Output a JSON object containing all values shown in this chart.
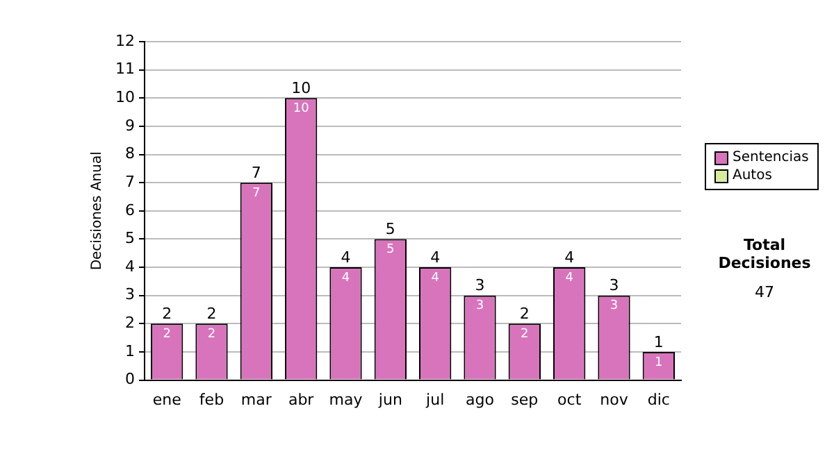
{
  "chart_data": {
    "type": "bar",
    "ylabel": "Decisiones Anual",
    "categories": [
      "ene",
      "feb",
      "mar",
      "abr",
      "may",
      "jun",
      "jul",
      "ago",
      "sep",
      "oct",
      "nov",
      "dic"
    ],
    "series": [
      {
        "name": "Sentencias",
        "color": "#d874bb",
        "values": [
          2,
          2,
          7,
          10,
          4,
          5,
          4,
          3,
          2,
          4,
          3,
          1
        ],
        "value_labels": [
          "2",
          "2",
          "7",
          "10",
          "4",
          "5",
          "4",
          "3",
          "2",
          "4",
          "3",
          "1"
        ]
      },
      {
        "name": "Autos",
        "color": "#d8eca0",
        "values": [
          0,
          0,
          0,
          0,
          0,
          0,
          0,
          0,
          0,
          0,
          0,
          0
        ]
      }
    ],
    "stacked": true,
    "totals": [
      "2",
      "2",
      "7",
      "10",
      "4",
      "5",
      "4",
      "3",
      "2",
      "4",
      "3",
      "1"
    ],
    "ylim": [
      0,
      12
    ],
    "yticks": [
      0,
      1,
      2,
      3,
      4,
      5,
      6,
      7,
      8,
      9,
      10,
      11,
      12
    ],
    "grid": "y",
    "legend": "right",
    "annotations": [
      "Total Decisiones",
      "47"
    ]
  }
}
